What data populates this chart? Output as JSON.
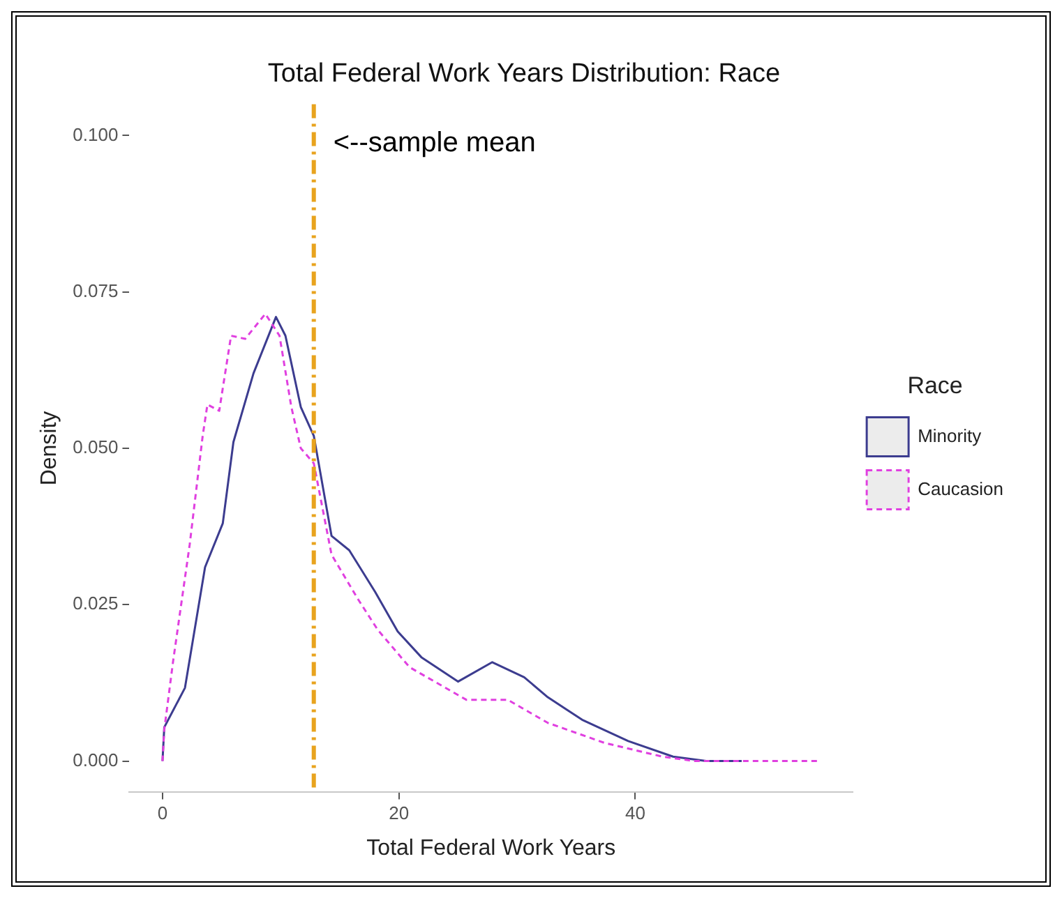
{
  "chart_data": {
    "type": "line",
    "title": "Total Federal Work Years Distribution: Race",
    "xlabel": "Total Federal Work Years",
    "ylabel": "Density",
    "legend_title": "Race",
    "legend": "right",
    "grid": false,
    "marker": "none",
    "xlim": [
      -2.8,
      58.4
    ],
    "xticks": [
      0,
      20,
      40
    ],
    "ylim": [
      -0.005,
      0.105
    ],
    "yticks": [
      {
        "value": 0,
        "label": "0.000"
      },
      0.025,
      {
        "value": 0.05,
        "label": "0.050"
      },
      0.075,
      {
        "value": 0.1,
        "label": "0.100"
      }
    ],
    "ref_lines": [
      {
        "axis": "x",
        "value": 12.8,
        "label": "<--sample mean",
        "color": "#e8a31e",
        "line_style": "dashdot"
      }
    ],
    "series": [
      {
        "name": "Minority",
        "color": "#3c3c8f",
        "line_style": "solid",
        "x": [
          0,
          0.15,
          1.9,
          3.6,
          5.1,
          6.0,
          7.7,
          9.6,
          10.4,
          11.7,
          12.8,
          14.3,
          15.8,
          18,
          19.9,
          21.9,
          25,
          27.9,
          30.6,
          32.6,
          35.5,
          39.4,
          43.2,
          46,
          49
        ],
        "values": [
          0,
          0.0054,
          0.0117,
          0.031,
          0.038,
          0.051,
          0.062,
          0.071,
          0.068,
          0.0566,
          0.052,
          0.036,
          0.0337,
          0.027,
          0.0207,
          0.0166,
          0.0127,
          0.0158,
          0.0134,
          0.0102,
          0.0066,
          0.0032,
          0.0007,
          0,
          0
        ]
      },
      {
        "name": "Caucasion",
        "color": "#e040e0",
        "line_style": "dashed",
        "x": [
          0,
          0.15,
          0.9,
          2.3,
          3.4,
          3.8,
          4.8,
          5.8,
          7.0,
          8.7,
          9.9,
          10.9,
          11.7,
          12.8,
          14.3,
          16.5,
          18.2,
          20.9,
          25.7,
          29.2,
          32.6,
          37.4,
          42.3,
          45,
          55.6
        ],
        "values": [
          0,
          0.005,
          0.016,
          0.0346,
          0.052,
          0.057,
          0.056,
          0.068,
          0.0675,
          0.0715,
          0.068,
          0.0566,
          0.05,
          0.0476,
          0.033,
          0.026,
          0.021,
          0.015,
          0.0098,
          0.0098,
          0.0061,
          0.0029,
          0.0007,
          0,
          0
        ]
      }
    ]
  }
}
